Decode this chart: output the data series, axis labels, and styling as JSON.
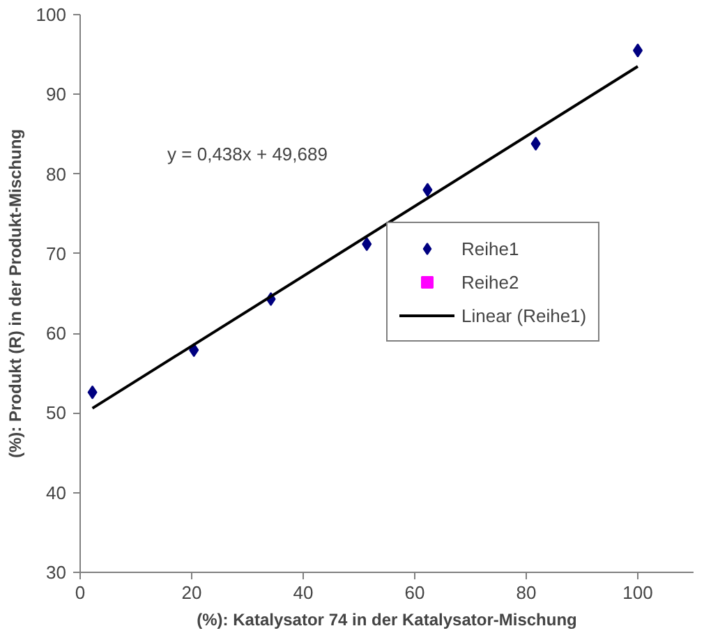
{
  "chart_data": {
    "type": "scatter",
    "xlabel": "(%): Katalysator 74 in der Katalysator-Mischung",
    "ylabel": "(%): Produkt (R) in der Produkt-Mischung",
    "x": [
      2.2,
      20.4,
      34.2,
      51.4,
      62.3,
      81.7,
      100
    ],
    "series": [
      {
        "name": "Reihe1",
        "color": "#000080",
        "values": [
          52.6,
          57.9,
          64.3,
          71.2,
          78.0,
          83.8,
          95.5
        ],
        "marker": "diamond"
      },
      {
        "name": "Reihe2",
        "color": "#ff00ff",
        "values": [
          null,
          null,
          null,
          null,
          null,
          null,
          null
        ],
        "marker": "square"
      },
      {
        "name": "Linear (Reihe1)",
        "type": "line",
        "color": "#000000",
        "x": [
          2.2,
          100
        ],
        "values": [
          50.6,
          93.5
        ],
        "marker": "none",
        "line_style": "solid"
      }
    ],
    "annotations": [
      "y = 0,438x + 49,689"
    ],
    "xlim": [
      0,
      110
    ],
    "xticks": [
      0,
      20,
      40,
      60,
      80,
      100
    ],
    "ylim": [
      30,
      100
    ],
    "yticks": [
      30,
      40,
      50,
      60,
      70,
      80,
      90,
      100
    ],
    "grid": false,
    "legend": "right"
  }
}
